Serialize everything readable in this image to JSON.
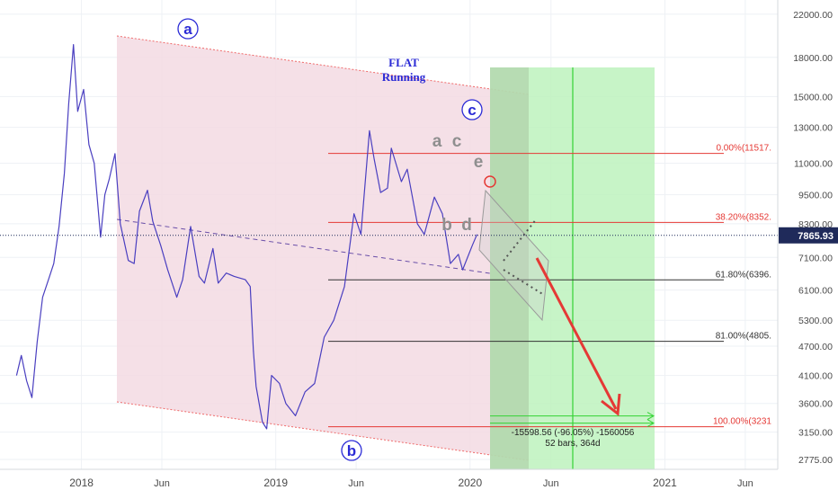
{
  "colors": {
    "background": "#ffffff",
    "grid": "#eef1f5",
    "channel_fill": "#f3dbe3",
    "channel_edge": "#ef6a6a",
    "price_line": "#4a3fc0",
    "marker_blue": "#2b2bd6",
    "wave_gray": "#8f8f8f",
    "fib_red": "#e53935",
    "fib_black": "#333333",
    "projection_fill": "#bdf2bd",
    "projection_line": "#34d334",
    "arrow": "#e53935",
    "last_price_bg": "#1f2a5a"
  },
  "chart_data": {
    "type": "line",
    "title": "",
    "xlabel": "",
    "ylabel": "",
    "log_scale": true,
    "grid": true,
    "x_range": [
      "2017-08-01",
      "2021-08-01"
    ],
    "y_range": [
      2650,
      23500
    ],
    "x_ticks": [
      {
        "date": "2018-01-01",
        "label": "2018"
      },
      {
        "date": "2018-06-01",
        "label": "Jun"
      },
      {
        "date": "2019-01-01",
        "label": "2019"
      },
      {
        "date": "2019-06-01",
        "label": "Jun"
      },
      {
        "date": "2020-01-01",
        "label": "2020"
      },
      {
        "date": "2020-06-01",
        "label": "Jun"
      },
      {
        "date": "2021-01-01",
        "label": "2021"
      },
      {
        "date": "2021-06-01",
        "label": "Jun"
      }
    ],
    "y_ticks": [
      {
        "value": 22000,
        "label": "22000.00"
      },
      {
        "value": 18000,
        "label": "18000.00"
      },
      {
        "value": 15000,
        "label": "15000.00"
      },
      {
        "value": 13000,
        "label": "13000.00"
      },
      {
        "value": 11000,
        "label": "11000.00"
      },
      {
        "value": 9500,
        "label": "9500.00"
      },
      {
        "value": 8300,
        "label": "8300.00"
      },
      {
        "value": 7100,
        "label": "7100.00"
      },
      {
        "value": 6100,
        "label": "6100.00"
      },
      {
        "value": 5300,
        "label": "5300.00"
      },
      {
        "value": 4700,
        "label": "4700.00"
      },
      {
        "value": 4100,
        "label": "4100.00"
      },
      {
        "value": 3600,
        "label": "3600.00"
      },
      {
        "value": 3150,
        "label": "3150.00"
      },
      {
        "value": 2775,
        "label": "2775.00"
      }
    ],
    "series": [
      {
        "points": [
          [
            "2017-09-01",
            4100
          ],
          [
            "2017-09-10",
            4500
          ],
          [
            "2017-09-20",
            4000
          ],
          [
            "2017-09-30",
            3700
          ],
          [
            "2017-10-10",
            4800
          ],
          [
            "2017-10-20",
            5900
          ],
          [
            "2017-10-31",
            6400
          ],
          [
            "2017-11-10",
            6900
          ],
          [
            "2017-11-20",
            8200
          ],
          [
            "2017-11-30",
            10500
          ],
          [
            "2017-12-08",
            14500
          ],
          [
            "2017-12-17",
            19100
          ],
          [
            "2017-12-25",
            14000
          ],
          [
            "2018-01-05",
            15500
          ],
          [
            "2018-01-15",
            12000
          ],
          [
            "2018-01-25",
            11000
          ],
          [
            "2018-02-06",
            7800
          ],
          [
            "2018-02-14",
            9500
          ],
          [
            "2018-02-22",
            10200
          ],
          [
            "2018-03-05",
            11500
          ],
          [
            "2018-03-15",
            8300
          ],
          [
            "2018-03-30",
            7000
          ],
          [
            "2018-04-10",
            6900
          ],
          [
            "2018-04-20",
            8800
          ],
          [
            "2018-05-05",
            9700
          ],
          [
            "2018-05-15",
            8400
          ],
          [
            "2018-05-30",
            7500
          ],
          [
            "2018-06-12",
            6700
          ],
          [
            "2018-06-29",
            5900
          ],
          [
            "2018-07-10",
            6400
          ],
          [
            "2018-07-25",
            8200
          ],
          [
            "2018-08-10",
            6500
          ],
          [
            "2018-08-20",
            6300
          ],
          [
            "2018-09-05",
            7400
          ],
          [
            "2018-09-15",
            6300
          ],
          [
            "2018-09-30",
            6600
          ],
          [
            "2018-10-15",
            6500
          ],
          [
            "2018-11-05",
            6400
          ],
          [
            "2018-11-14",
            6200
          ],
          [
            "2018-11-20",
            4600
          ],
          [
            "2018-11-25",
            3900
          ],
          [
            "2018-12-07",
            3300
          ],
          [
            "2018-12-15",
            3200
          ],
          [
            "2018-12-24",
            4100
          ],
          [
            "2019-01-08",
            3950
          ],
          [
            "2019-01-20",
            3600
          ],
          [
            "2019-02-07",
            3400
          ],
          [
            "2019-02-25",
            3800
          ],
          [
            "2019-03-15",
            3950
          ],
          [
            "2019-04-02",
            4900
          ],
          [
            "2019-04-20",
            5300
          ],
          [
            "2019-05-10",
            6200
          ],
          [
            "2019-05-28",
            8700
          ],
          [
            "2019-06-10",
            7900
          ],
          [
            "2019-06-26",
            12800
          ],
          [
            "2019-07-05",
            11200
          ],
          [
            "2019-07-17",
            9600
          ],
          [
            "2019-07-30",
            9800
          ],
          [
            "2019-08-06",
            11800
          ],
          [
            "2019-08-25",
            10100
          ],
          [
            "2019-09-05",
            10700
          ],
          [
            "2019-09-24",
            8300
          ],
          [
            "2019-10-07",
            7900
          ],
          [
            "2019-10-26",
            9400
          ],
          [
            "2019-11-10",
            8700
          ],
          [
            "2019-11-25",
            6900
          ],
          [
            "2019-12-10",
            7200
          ],
          [
            "2019-12-18",
            6700
          ],
          [
            "2020-01-05",
            7500
          ],
          [
            "2020-01-14",
            7900
          ]
        ]
      }
    ],
    "last_price": {
      "value": 7865.93,
      "label": "7865.93"
    },
    "fib_levels": [
      {
        "value": 11517,
        "label": "0.00%(11517.",
        "color": "red"
      },
      {
        "value": 8352,
        "label": "38.20%(8352.",
        "color": "red"
      },
      {
        "value": 6396,
        "label": "61.80%(6396.",
        "color": "black"
      },
      {
        "value": 4805,
        "label": "81.00%(4805.",
        "color": "black"
      },
      {
        "value": 3231,
        "label": "100.00%(3231",
        "color": "red"
      }
    ],
    "annotations": {
      "wave_a": "a",
      "wave_b": "b",
      "wave_c": "c",
      "sub_a": "a",
      "sub_c": "c",
      "sub_e": "e",
      "sub_b": "b",
      "sub_d": "d",
      "pattern_line1": "FLAT",
      "pattern_line2": "Running",
      "measure_line1": "-15598.56 (-96.05%) -1560056",
      "measure_line2": "52 bars, 364d"
    }
  }
}
